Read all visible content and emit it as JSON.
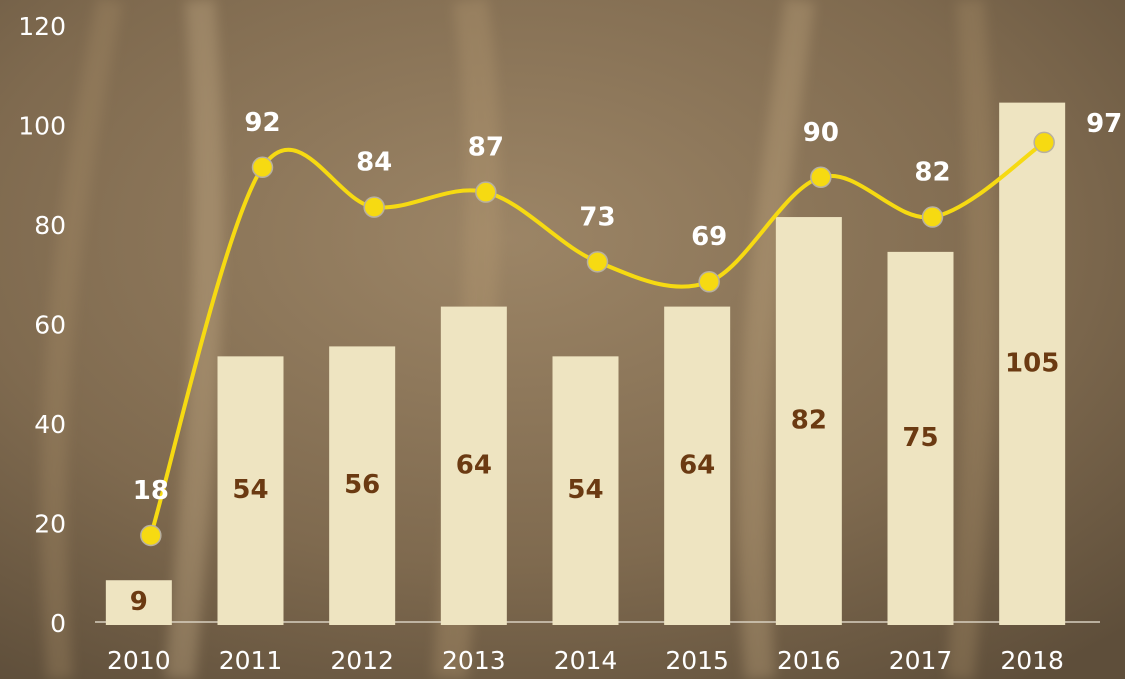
{
  "chart_data": {
    "type": "combo",
    "categories": [
      "2010",
      "2011",
      "2012",
      "2013",
      "2014",
      "2015",
      "2016",
      "2017",
      "2018"
    ],
    "series": [
      {
        "type": "bar",
        "color": "#eee4c1",
        "label_color": "#6b3a12",
        "values": [
          9,
          54,
          56,
          64,
          54,
          64,
          82,
          75,
          105
        ]
      },
      {
        "type": "line",
        "color": "#f6da12",
        "label_color": "#ffffff",
        "values": [
          18,
          92,
          84,
          87,
          73,
          69,
          90,
          82,
          97
        ]
      }
    ],
    "ylim": [
      0,
      120
    ],
    "yticks": [
      0,
      20,
      40,
      60,
      80,
      100,
      120
    ],
    "grid": false
  }
}
